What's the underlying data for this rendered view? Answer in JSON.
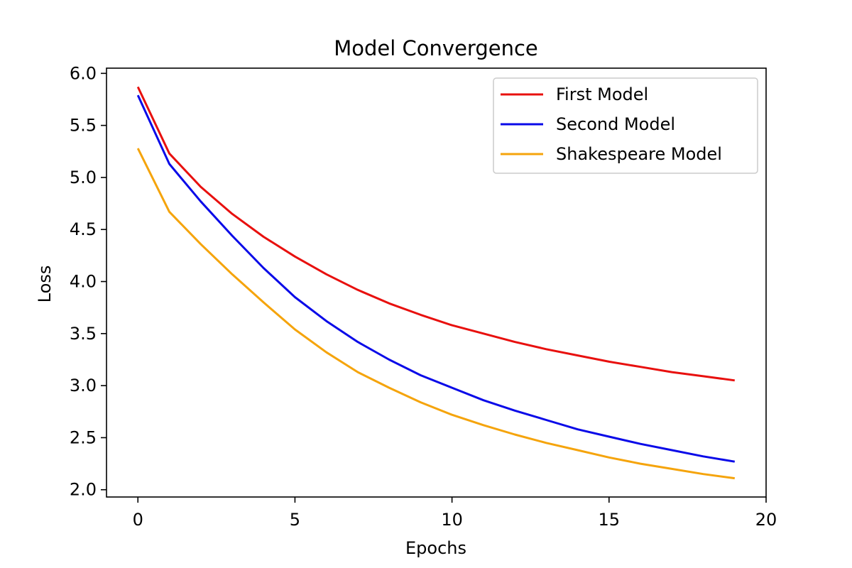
{
  "chart_data": {
    "type": "line",
    "title": "Model Convergence",
    "xlabel": "Epochs",
    "ylabel": "Loss",
    "xlim": [
      -1,
      20
    ],
    "ylim": [
      1.93,
      6.05
    ],
    "xticks": [
      0,
      5,
      10,
      15,
      20
    ],
    "yticks": [
      2.0,
      2.5,
      3.0,
      3.5,
      4.0,
      4.5,
      5.0,
      5.5,
      6.0
    ],
    "ytick_labels": [
      "2.0",
      "2.5",
      "3.0",
      "3.5",
      "4.0",
      "4.5",
      "5.0",
      "5.5",
      "6.0"
    ],
    "grid": false,
    "legend_position": "top-right",
    "x": [
      0,
      1,
      2,
      3,
      4,
      5,
      6,
      7,
      8,
      9,
      10,
      11,
      12,
      13,
      14,
      15,
      16,
      17,
      18,
      19
    ],
    "series": [
      {
        "name": "First Model",
        "color": "#e8100e",
        "values": [
          5.87,
          5.23,
          4.91,
          4.65,
          4.43,
          4.24,
          4.07,
          3.92,
          3.79,
          3.68,
          3.58,
          3.5,
          3.42,
          3.35,
          3.29,
          3.23,
          3.18,
          3.13,
          3.09,
          3.05
        ]
      },
      {
        "name": "Second Model",
        "color": "#0a0ae8",
        "values": [
          5.79,
          5.13,
          4.77,
          4.44,
          4.13,
          3.85,
          3.62,
          3.42,
          3.25,
          3.1,
          2.98,
          2.86,
          2.76,
          2.67,
          2.58,
          2.51,
          2.44,
          2.38,
          2.32,
          2.27
        ]
      },
      {
        "name": "Shakespeare Model",
        "color": "#f5a40c",
        "values": [
          5.28,
          4.67,
          4.36,
          4.07,
          3.8,
          3.54,
          3.32,
          3.13,
          2.98,
          2.84,
          2.72,
          2.62,
          2.53,
          2.45,
          2.38,
          2.31,
          2.25,
          2.2,
          2.15,
          2.11
        ]
      }
    ]
  }
}
